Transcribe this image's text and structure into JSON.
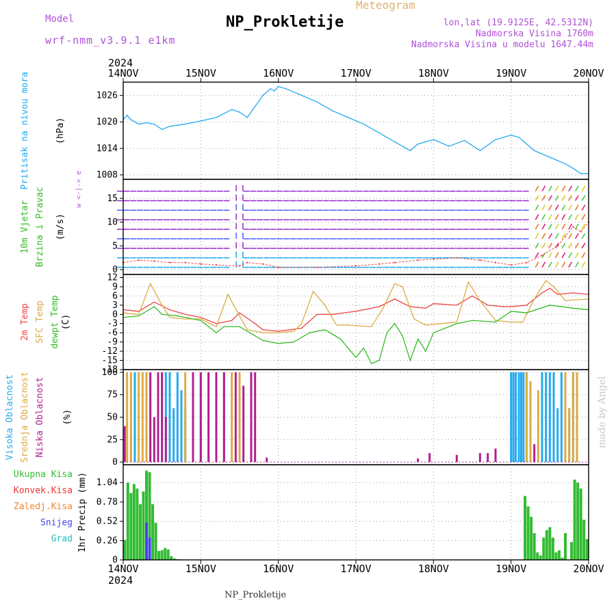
{
  "header": {
    "model_label": "Model",
    "model_name": "wrf-nmm_v3.9.1 e1km",
    "title": "NP_Prokletije",
    "meteogram_label": "Meteogram",
    "location_line1": "lon,lat (19.9125E, 42.5312N)",
    "location_line2": "Nadmorska Visina 1760m",
    "location_line3": "Nadmorska Visina u modelu 1647.44m"
  },
  "footer": {
    "station": "NP_Prokletije",
    "credit": "made by Angel"
  },
  "colors": {
    "pressure": "#22aaee",
    "temp2m": "#ee4444",
    "sfc_temp": "#ddaa44",
    "dewpt": "#33bb22",
    "high_cloud": "#22aaee",
    "mid_cloud": "#ddaa44",
    "low_cloud": "#b0208e",
    "total_precip": "#33bb33",
    "convective": "#ee3333",
    "freezing": "#ee8833",
    "snow": "#4444ee",
    "hail": "#22bbbb",
    "wind_arrows": [
      "#9933cc",
      "#5566ff",
      "#22aaee",
      "#44cc44",
      "#ddcc22",
      "#ee7722",
      "#dd2277"
    ]
  },
  "chart_data": [
    {
      "type": "line",
      "panel": "pressure",
      "ylabel_lines": [
        "Pritisak na nivou mora",
        "(hPa)"
      ],
      "x_ticks": [
        "14NOV",
        "15NOV",
        "16NOV",
        "17NOV",
        "18NOV",
        "19NOV",
        "20NOV"
      ],
      "x_year": "2024",
      "y_ticks": [
        "1008",
        "1014",
        "1020",
        "1026"
      ],
      "ylim": [
        1007,
        1029
      ],
      "grid": true,
      "series": [
        {
          "name": "Pritisak na nivou mora",
          "x": [
            0,
            0.05,
            0.1,
            0.2,
            0.3,
            0.4,
            0.5,
            0.6,
            0.8,
            1.0,
            1.2,
            1.4,
            1.5,
            1.6,
            1.7,
            1.8,
            1.9,
            1.95,
            2.0,
            2.1,
            2.3,
            2.5,
            2.7,
            2.9,
            3.1,
            3.3,
            3.5,
            3.7,
            3.8,
            3.9,
            4.0,
            4.2,
            4.4,
            4.6,
            4.8,
            5.0,
            5.1,
            5.3,
            5.5,
            5.7,
            5.8,
            5.9,
            6.0
          ],
          "values": [
            1020.5,
            1021.5,
            1020.5,
            1019.5,
            1019.8,
            1019.5,
            1018.3,
            1019.0,
            1019.5,
            1020.2,
            1021.0,
            1022.8,
            1022.2,
            1021.0,
            1023.5,
            1026.0,
            1027.5,
            1027.0,
            1028.0,
            1027.5,
            1026.0,
            1024.5,
            1022.5,
            1021.0,
            1019.5,
            1017.5,
            1015.5,
            1013.5,
            1015.0,
            1015.5,
            1016.0,
            1014.5,
            1015.8,
            1013.5,
            1016.0,
            1017.0,
            1016.5,
            1013.5,
            1012.0,
            1010.5,
            1009.5,
            1008.3,
            1008.3
          ]
        }
      ]
    },
    {
      "type": "scatter",
      "panel": "wind",
      "ylabel_lines": [
        "10m Vjetar",
        "Brzina i Pravac",
        "(m/s)"
      ],
      "compass": "w <-|-> e",
      "y_ticks": [
        "0",
        "5",
        "10",
        "15"
      ],
      "ylim": [
        -1,
        19
      ],
      "grid": true,
      "series": [
        {
          "name": "wind speed",
          "x": [
            0,
            0.2,
            0.4,
            0.6,
            0.8,
            1.0,
            1.2,
            1.5,
            1.6,
            1.8,
            2.0,
            2.5,
            3.0,
            3.3,
            3.5,
            3.8,
            4.0,
            4.3,
            4.6,
            4.8,
            5.0,
            5.2,
            5.4,
            5.6,
            5.7,
            5.8,
            5.9,
            6.0
          ],
          "values": [
            1.5,
            2.0,
            1.8,
            1.5,
            1.5,
            1.2,
            1.0,
            0.8,
            1.5,
            1.2,
            0.5,
            0.5,
            0.8,
            1.2,
            1.5,
            2.0,
            2.2,
            2.5,
            2.0,
            1.5,
            1.0,
            1.5,
            3.0,
            5.0,
            7.0,
            9.0,
            8.0,
            10.0
          ]
        }
      ]
    },
    {
      "type": "line",
      "panel": "temperature",
      "ylabel_lines": [
        "2m Temp",
        "SFC Temp",
        "dewpt Temp",
        "(C)"
      ],
      "y_ticks": [
        "12",
        "9",
        "6",
        "3",
        "0",
        "-3",
        "-6",
        "-9",
        "-12",
        "-15",
        "-18"
      ],
      "ylim": [
        -18,
        13
      ],
      "grid": true,
      "series": [
        {
          "name": "2m Temp",
          "x": [
            0,
            0.2,
            0.4,
            0.6,
            0.8,
            1.0,
            1.2,
            1.4,
            1.5,
            1.7,
            1.8,
            2.0,
            2.3,
            2.5,
            2.7,
            3.0,
            3.3,
            3.5,
            3.7,
            3.9,
            4.0,
            4.3,
            4.5,
            4.7,
            4.9,
            5.0,
            5.2,
            5.4,
            5.5,
            5.6,
            5.8,
            6.0
          ],
          "values": [
            1.5,
            1.0,
            4.0,
            1.5,
            0.0,
            -1.0,
            -3.0,
            -2.0,
            0.5,
            -3.0,
            -5.0,
            -5.5,
            -4.5,
            0.0,
            0.0,
            1.0,
            2.5,
            5.0,
            2.5,
            2.0,
            3.5,
            3.0,
            6.0,
            3.0,
            2.5,
            2.5,
            3.0,
            7.0,
            8.5,
            6.5,
            7.0,
            6.5
          ]
        },
        {
          "name": "SFC Temp",
          "x": [
            0,
            0.2,
            0.35,
            0.5,
            0.6,
            0.8,
            1.0,
            1.2,
            1.35,
            1.5,
            1.6,
            1.8,
            2.0,
            2.2,
            2.3,
            2.45,
            2.6,
            2.75,
            2.9,
            3.2,
            3.35,
            3.5,
            3.6,
            3.75,
            3.9,
            4.1,
            4.3,
            4.45,
            4.6,
            4.8,
            5.0,
            5.15,
            5.3,
            5.45,
            5.55,
            5.7,
            6.0
          ],
          "values": [
            0.5,
            0.0,
            10.0,
            3.0,
            -1.0,
            -1.5,
            -1.5,
            -4.0,
            6.5,
            -0.5,
            -5.0,
            -6.0,
            -6.0,
            -5.5,
            -3.0,
            7.5,
            3.0,
            -3.5,
            -3.5,
            -4.0,
            2.0,
            10.0,
            9.0,
            -1.5,
            -3.5,
            -3.0,
            -2.5,
            10.5,
            4.5,
            -2.0,
            -2.5,
            -2.5,
            5.0,
            11.0,
            9.0,
            4.5,
            5.0
          ]
        },
        {
          "name": "dewpt Temp",
          "x": [
            0,
            0.2,
            0.4,
            0.5,
            0.7,
            1.0,
            1.2,
            1.3,
            1.5,
            1.7,
            1.8,
            2.0,
            2.2,
            2.4,
            2.6,
            2.8,
            3.0,
            3.1,
            3.2,
            3.3,
            3.4,
            3.5,
            3.6,
            3.7,
            3.8,
            3.9,
            4.0,
            4.3,
            4.5,
            4.8,
            5.0,
            5.2,
            5.5,
            5.8,
            6.0
          ],
          "values": [
            -1.0,
            -0.5,
            2.5,
            0.0,
            -0.5,
            -2.0,
            -6.0,
            -4.0,
            -4.0,
            -7.0,
            -8.5,
            -9.5,
            -9.0,
            -6.0,
            -5.0,
            -8.0,
            -14.0,
            -11.0,
            -16.0,
            -15.0,
            -6.0,
            -3.0,
            -7.0,
            -15.0,
            -8.0,
            -12.0,
            -6.0,
            -3.0,
            -2.0,
            -2.5,
            1.0,
            0.5,
            3.0,
            2.0,
            1.5
          ]
        }
      ]
    },
    {
      "type": "bar",
      "panel": "clouds",
      "ylabel_lines": [
        "Visoka Oblacnost",
        "Srednja Oblacnost",
        "Niska Oblacnost",
        "(%)"
      ],
      "y_ticks": [
        "0",
        "25",
        "50",
        "75",
        "100"
      ],
      "ylim": [
        -3,
        103
      ],
      "grid": true,
      "series": [
        {
          "name": "Visoka Oblacnost",
          "x": [
            0.1,
            0.15,
            0.5,
            0.55,
            0.6,
            0.65,
            0.7,
            0.75,
            0.8,
            1.5,
            5.0,
            5.03,
            5.06,
            5.1,
            5.13,
            5.16,
            5.2,
            5.4,
            5.45,
            5.5,
            5.55,
            5.6,
            5.65,
            5.7,
            5.75,
            5.8
          ],
          "values": [
            30,
            100,
            100,
            100,
            100,
            60,
            100,
            80,
            60,
            100,
            100,
            100,
            100,
            100,
            100,
            100,
            100,
            100,
            100,
            100,
            100,
            60,
            100,
            60,
            60,
            100
          ]
        },
        {
          "name": "Srednja Oblacnost",
          "x": [
            0.05,
            0.1,
            0.2,
            0.25,
            0.3,
            0.35,
            0.8,
            0.9,
            1.0,
            1.1,
            1.2,
            1.3,
            1.4,
            1.5,
            5.2,
            5.25,
            5.35,
            5.7,
            5.75,
            5.8,
            5.85
          ],
          "values": [
            100,
            100,
            100,
            100,
            100,
            100,
            100,
            100,
            100,
            100,
            100,
            100,
            100,
            100,
            100,
            90,
            80,
            100,
            60,
            100,
            100
          ]
        },
        {
          "name": "Niska Oblacnost",
          "x": [
            0.02,
            0.35,
            0.4,
            0.45,
            0.5,
            0.55,
            0.9,
            1.0,
            1.1,
            1.2,
            1.3,
            1.45,
            1.55,
            1.65,
            1.7,
            1.85,
            3.8,
            3.95,
            4.3,
            4.6,
            4.7,
            4.8,
            5.3
          ],
          "values": [
            40,
            100,
            50,
            100,
            100,
            50,
            100,
            100,
            100,
            100,
            100,
            100,
            85,
            100,
            100,
            5,
            4,
            10,
            8,
            10,
            10,
            15,
            20
          ]
        }
      ]
    },
    {
      "type": "bar",
      "panel": "precipitation",
      "ylabel_lines": [
        "1hr Precip (mm)"
      ],
      "legend": [
        "Ukupna Kisa",
        "Konvek.Kisa",
        "Zaledj.Kisa",
        "Snijeg",
        "Grad"
      ],
      "y_ticks": [
        "0",
        "0.26",
        "0.52",
        "0.78",
        "1.04"
      ],
      "ylim": [
        0,
        1.28
      ],
      "grid": true,
      "series": [
        {
          "name": "Ukupna Kisa",
          "x": [
            0.02,
            0.06,
            0.1,
            0.14,
            0.18,
            0.22,
            0.26,
            0.3,
            0.34,
            0.38,
            0.42,
            0.46,
            0.5,
            0.54,
            0.58,
            0.62,
            0.66,
            0.7,
            5.18,
            5.22,
            5.26,
            5.3,
            5.34,
            5.38,
            5.42,
            5.46,
            5.5,
            5.54,
            5.58,
            5.62,
            5.66,
            5.7,
            5.78,
            5.82,
            5.86,
            5.9,
            5.94,
            5.98
          ],
          "values": [
            0.27,
            1.04,
            0.9,
            1.02,
            0.96,
            0.75,
            0.92,
            1.2,
            1.18,
            0.75,
            0.5,
            0.12,
            0.13,
            0.16,
            0.14,
            0.05,
            0.02,
            0.01,
            0.86,
            0.72,
            0.58,
            0.36,
            0.1,
            0.06,
            0.3,
            0.4,
            0.44,
            0.3,
            0.1,
            0.13,
            0.03,
            0.36,
            0.24,
            1.08,
            1.04,
            0.96,
            0.54,
            0.28
          ]
        },
        {
          "name": "Snijeg",
          "x": [
            0.3,
            0.34
          ],
          "values": [
            0.5,
            0.3
          ]
        }
      ]
    }
  ]
}
